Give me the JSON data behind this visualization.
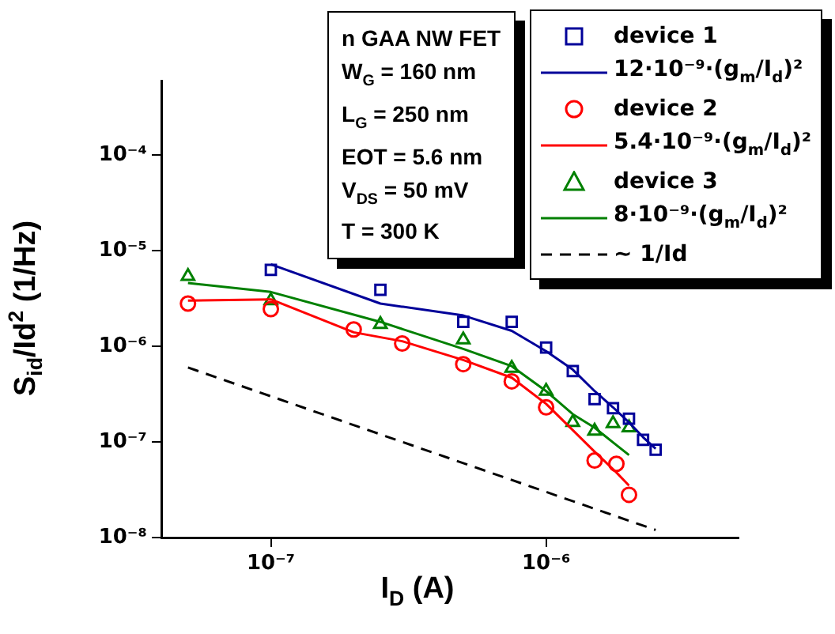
{
  "chart_data": {
    "type": "scatter",
    "xlabel": "I$_{D}$ (A)",
    "ylabel": "S$_{id}$/Id$^{2}$ (1/Hz)",
    "log": "xy",
    "grid": false,
    "legend": "top right",
    "xlim": [
      4e-08,
      5e-06
    ],
    "xticks": [
      {
        "value": 1e-07,
        "label": "10⁻⁷"
      },
      {
        "value": 1e-06,
        "label": "10⁻⁶"
      }
    ],
    "ylim": [
      1e-08,
      0.0006
    ],
    "yticks": [
      {
        "value": 1e-08,
        "label": "10⁻⁸"
      },
      {
        "value": 1e-07,
        "label": "10⁻⁷"
      },
      {
        "value": 1e-06,
        "label": "10⁻⁶"
      },
      {
        "value": 1e-05,
        "label": "10⁻⁵"
      },
      {
        "value": 0.0001,
        "label": "10⁻⁴"
      }
    ],
    "annotations": [
      "n GAA NW FET",
      "W$_{G}$ = 160 nm",
      "L$_{G}$ = 250 nm",
      "EOT = 5.6 nm",
      "V$_{DS}$ = 50 mV",
      "T = 300 K"
    ],
    "series": [
      {
        "name": "device 1",
        "type": "scatter",
        "marker": "square",
        "color": "#000099",
        "x": [
          1e-07,
          2.5e-07,
          5e-07,
          7.5e-07,
          1e-06,
          1.25e-06,
          1.5e-06,
          1.75e-06,
          2e-06,
          2.25e-06,
          2.5e-06
        ],
        "values": [
          6.3e-06,
          3.9e-06,
          1.8e-06,
          1.8e-06,
          9.7e-07,
          5.5e-07,
          2.8e-07,
          2.25e-07,
          1.75e-07,
          1.05e-07,
          8.3e-08
        ]
      },
      {
        "name": "12·10⁻⁹·(g$_{m}$/I$_{d}$)²",
        "type": "line",
        "marker": "none",
        "line_style": "solid",
        "color": "#000099",
        "x": [
          1e-07,
          2.5e-07,
          5e-07,
          7.5e-07,
          1e-06,
          1.25e-06,
          1.5e-06,
          1.75e-06,
          2e-06,
          2.25e-06,
          2.5e-06
        ],
        "values": [
          7.2e-06,
          2.8e-06,
          2.1e-06,
          1.45e-06,
          8.9e-07,
          5.7e-07,
          3.4e-07,
          2.3e-07,
          1.6e-07,
          1.12e-07,
          8.5e-08
        ]
      },
      {
        "name": "device 2",
        "type": "scatter",
        "marker": "circle",
        "color": "#ff0000",
        "x": [
          5e-08,
          1e-07,
          2e-07,
          3e-07,
          5e-07,
          7.5e-07,
          1e-06,
          1.5e-06,
          1.8e-06,
          2e-06
        ],
        "values": [
          2.8e-06,
          2.45e-06,
          1.5e-06,
          1.07e-06,
          6.5e-07,
          4.3e-07,
          2.3e-07,
          6.4e-08,
          5.9e-08,
          2.8e-08
        ]
      },
      {
        "name": "5.4·10⁻⁹·(g$_{m}$/I$_{d}$)²",
        "type": "line",
        "marker": "none",
        "line_style": "solid",
        "color": "#ff0000",
        "x": [
          5e-08,
          1e-07,
          2e-07,
          3e-07,
          5e-07,
          7.5e-07,
          1e-06,
          1.5e-06,
          1.8e-06,
          2e-06
        ],
        "values": [
          3e-06,
          3.1e-06,
          1.4e-06,
          1.13e-06,
          7.2e-07,
          4.7e-07,
          2.5e-07,
          7.9e-08,
          4.8e-08,
          3.5e-08
        ]
      },
      {
        "name": "device 3",
        "type": "scatter",
        "marker": "triangle",
        "color": "#008000",
        "x": [
          5e-08,
          1e-07,
          2.5e-07,
          5e-07,
          7.5e-07,
          1e-06,
          1.25e-06,
          1.5e-06,
          1.75e-06,
          2e-06
        ],
        "values": [
          5.4e-06,
          3e-06,
          1.7e-06,
          1.17e-06,
          5.9e-07,
          3.4e-07,
          1.6e-07,
          1.3e-07,
          1.56e-07,
          1.41e-07
        ]
      },
      {
        "name": "8·10⁻⁹·(g$_{m}$/I$_{d}$)²",
        "type": "line",
        "marker": "none",
        "line_style": "solid",
        "color": "#008000",
        "x": [
          5e-08,
          1e-07,
          2.5e-07,
          5e-07,
          7.5e-07,
          1e-06,
          1.25e-06,
          1.5e-06,
          1.75e-06,
          2e-06
        ],
        "values": [
          4.6e-06,
          3.7e-06,
          1.8e-06,
          9.4e-07,
          6.2e-07,
          3.4e-07,
          1.95e-07,
          1.41e-07,
          9.9e-08,
          7.3e-08
        ]
      },
      {
        "name": "~ 1/Id",
        "type": "line",
        "marker": "none",
        "line_style": "dashed",
        "color": "#000000",
        "x": [
          5e-08,
          2.5e-06
        ],
        "values": [
          6e-07,
          1.2e-08
        ]
      }
    ]
  }
}
